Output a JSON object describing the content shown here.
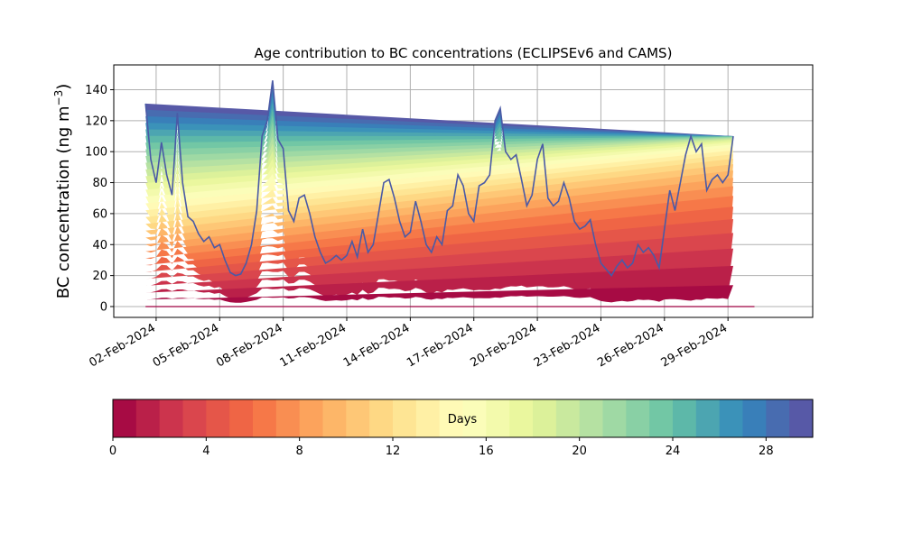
{
  "chart_data": {
    "type": "area",
    "title": "Age contribution to BC concentrations (ECLIPSEv6 and CAMS)",
    "ylabel_main": "BC concentration (ng m",
    "ylabel_sup": "−3",
    "ylabel_close": ")",
    "xlabel": "",
    "ylim": [
      -7,
      156
    ],
    "xlim": [
      "2024-01-31",
      "2024-03-04"
    ],
    "yticks": [
      0,
      20,
      40,
      60,
      80,
      100,
      120,
      140
    ],
    "xticks": [
      {
        "date": "2024-02-02",
        "label": "02-Feb-2024"
      },
      {
        "date": "2024-02-05",
        "label": "05-Feb-2024"
      },
      {
        "date": "2024-02-08",
        "label": "08-Feb-2024"
      },
      {
        "date": "2024-02-11",
        "label": "11-Feb-2024"
      },
      {
        "date": "2024-02-14",
        "label": "14-Feb-2024"
      },
      {
        "date": "2024-02-17",
        "label": "17-Feb-2024"
      },
      {
        "date": "2024-02-20",
        "label": "20-Feb-2024"
      },
      {
        "date": "2024-02-23",
        "label": "23-Feb-2024"
      },
      {
        "date": "2024-02-26",
        "label": "26-Feb-2024"
      },
      {
        "date": "2024-02-29",
        "label": "29-Feb-2024"
      }
    ],
    "grid": true,
    "stacking": "stacked by age (days), youngest at bottom",
    "x": [
      "2024-02-01 12:00",
      "2024-02-01 18:00",
      "2024-02-02 00:00",
      "2024-02-02 06:00",
      "2024-02-02 12:00",
      "2024-02-02 18:00",
      "2024-02-03 00:00",
      "2024-02-03 06:00",
      "2024-02-03 12:00",
      "2024-02-03 18:00",
      "2024-02-04 00:00",
      "2024-02-04 06:00",
      "2024-02-04 12:00",
      "2024-02-04 18:00",
      "2024-02-05 00:00",
      "2024-02-05 06:00",
      "2024-02-05 12:00",
      "2024-02-05 18:00",
      "2024-02-06 00:00",
      "2024-02-06 06:00",
      "2024-02-06 12:00",
      "2024-02-06 18:00",
      "2024-02-07 00:00",
      "2024-02-07 06:00",
      "2024-02-07 12:00",
      "2024-02-07 18:00",
      "2024-02-08 00:00",
      "2024-02-08 06:00",
      "2024-02-08 12:00",
      "2024-02-08 18:00",
      "2024-02-09 00:00",
      "2024-02-09 06:00",
      "2024-02-09 12:00",
      "2024-02-09 18:00",
      "2024-02-10 00:00",
      "2024-02-10 06:00",
      "2024-02-10 12:00",
      "2024-02-10 18:00",
      "2024-02-11 00:00",
      "2024-02-11 06:00",
      "2024-02-11 12:00",
      "2024-02-11 18:00",
      "2024-02-12 00:00",
      "2024-02-12 06:00",
      "2024-02-12 12:00",
      "2024-02-12 18:00",
      "2024-02-13 00:00",
      "2024-02-13 06:00",
      "2024-02-13 12:00",
      "2024-02-13 18:00",
      "2024-02-14 00:00",
      "2024-02-14 06:00",
      "2024-02-14 12:00",
      "2024-02-14 18:00",
      "2024-02-15 00:00",
      "2024-02-15 06:00",
      "2024-02-15 12:00",
      "2024-02-15 18:00",
      "2024-02-16 00:00",
      "2024-02-16 06:00",
      "2024-02-16 12:00",
      "2024-02-16 18:00",
      "2024-02-17 00:00",
      "2024-02-17 06:00",
      "2024-02-17 12:00",
      "2024-02-17 18:00",
      "2024-02-18 00:00",
      "2024-02-18 06:00",
      "2024-02-18 12:00",
      "2024-02-18 18:00",
      "2024-02-19 00:00",
      "2024-02-19 06:00",
      "2024-02-19 12:00",
      "2024-02-19 18:00",
      "2024-02-20 00:00",
      "2024-02-20 06:00",
      "2024-02-20 12:00",
      "2024-02-20 18:00",
      "2024-02-21 00:00",
      "2024-02-21 06:00",
      "2024-02-21 12:00",
      "2024-02-21 18:00",
      "2024-02-22 00:00",
      "2024-02-22 06:00",
      "2024-02-22 12:00",
      "2024-02-22 18:00",
      "2024-02-23 00:00",
      "2024-02-23 06:00",
      "2024-02-23 12:00",
      "2024-02-23 18:00",
      "2024-02-24 00:00",
      "2024-02-24 06:00",
      "2024-02-24 12:00",
      "2024-02-24 18:00",
      "2024-02-25 00:00",
      "2024-02-25 06:00",
      "2024-02-25 12:00",
      "2024-02-25 18:00",
      "2024-02-26 00:00",
      "2024-02-26 06:00",
      "2024-02-26 12:00",
      "2024-02-26 18:00",
      "2024-02-27 00:00",
      "2024-02-27 06:00",
      "2024-02-27 12:00",
      "2024-02-27 18:00",
      "2024-02-28 00:00",
      "2024-02-28 06:00",
      "2024-02-28 12:00",
      "2024-02-28 18:00",
      "2024-02-29 00:00",
      "2024-02-29 06:00",
      "2024-02-29 12:00",
      "2024-02-29 18:00",
      "2024-03-01 00:00",
      "2024-03-01 06:00"
    ],
    "total": [
      131,
      95,
      80,
      106,
      85,
      72,
      125,
      80,
      58,
      55,
      47,
      42,
      45,
      38,
      40,
      30,
      22,
      20,
      21,
      28,
      40,
      62,
      110,
      120,
      146,
      108,
      102,
      62,
      55,
      70,
      72,
      60,
      45,
      35,
      28,
      30,
      33,
      30,
      33,
      42,
      32,
      50,
      35,
      40,
      60,
      80,
      82,
      70,
      55,
      45,
      48,
      68,
      55,
      40,
      35,
      45,
      40,
      62,
      65,
      85,
      78,
      60,
      55,
      78,
      80,
      85,
      120,
      128,
      100,
      95,
      98,
      82,
      65,
      72,
      95,
      105,
      70,
      65,
      68,
      80,
      70,
      55,
      50,
      52,
      56,
      40,
      28,
      24,
      20,
      26,
      30,
      25,
      28,
      40,
      35,
      38,
      33,
      25,
      50,
      75,
      62,
      80,
      98,
      110,
      100,
      105,
      75,
      82,
      85,
      80,
      85,
      110
    ],
    "young_fraction": [
      0.85,
      0.75,
      0.65,
      0.72,
      0.62,
      0.6,
      0.78,
      0.6,
      0.45,
      0.4,
      0.35,
      0.3,
      0.33,
      0.28,
      0.28,
      0.25,
      0.22,
      0.2,
      0.25,
      0.35,
      0.45,
      0.6,
      0.72,
      0.75,
      0.82,
      0.72,
      0.68,
      0.5,
      0.4,
      0.48,
      0.5,
      0.42,
      0.3,
      0.25,
      0.2,
      0.2,
      0.22,
      0.2,
      0.22,
      0.3,
      0.2,
      0.3,
      0.22,
      0.25,
      0.35,
      0.55,
      0.6,
      0.5,
      0.35,
      0.28,
      0.3,
      0.45,
      0.35,
      0.25,
      0.2,
      0.28,
      0.25,
      0.45,
      0.5,
      0.62,
      0.55,
      0.42,
      0.4,
      0.6,
      0.62,
      0.65,
      0.75,
      0.78,
      0.65,
      0.6,
      0.62,
      0.5,
      0.4,
      0.45,
      0.6,
      0.65,
      0.45,
      0.4,
      0.42,
      0.5,
      0.45,
      0.35,
      0.3,
      0.3,
      0.32,
      0.25,
      0.2,
      0.18,
      0.15,
      0.2,
      0.22,
      0.18,
      0.2,
      0.3,
      0.25,
      0.28,
      0.25,
      0.2,
      0.45,
      0.65,
      0.55,
      0.7,
      0.8,
      0.85,
      0.78,
      0.8,
      0.6,
      0.65,
      0.68,
      0.62,
      0.7,
      0.2
    ],
    "age_bins_days": 30,
    "colormap": [
      "#9e0142",
      "#d53e4f",
      "#f46d43",
      "#fdae61",
      "#fee08b",
      "#ffffbf",
      "#e6f598",
      "#abdda4",
      "#66c2a5",
      "#3288bd",
      "#5e4fa2"
    ]
  },
  "colorbar": {
    "label": "Days",
    "min": 0,
    "max": 30,
    "ticks": [
      "0",
      "4",
      "8",
      "12",
      "16",
      "20",
      "24",
      "28"
    ],
    "tick_values": [
      0,
      4,
      8,
      12,
      16,
      20,
      24,
      28
    ]
  }
}
